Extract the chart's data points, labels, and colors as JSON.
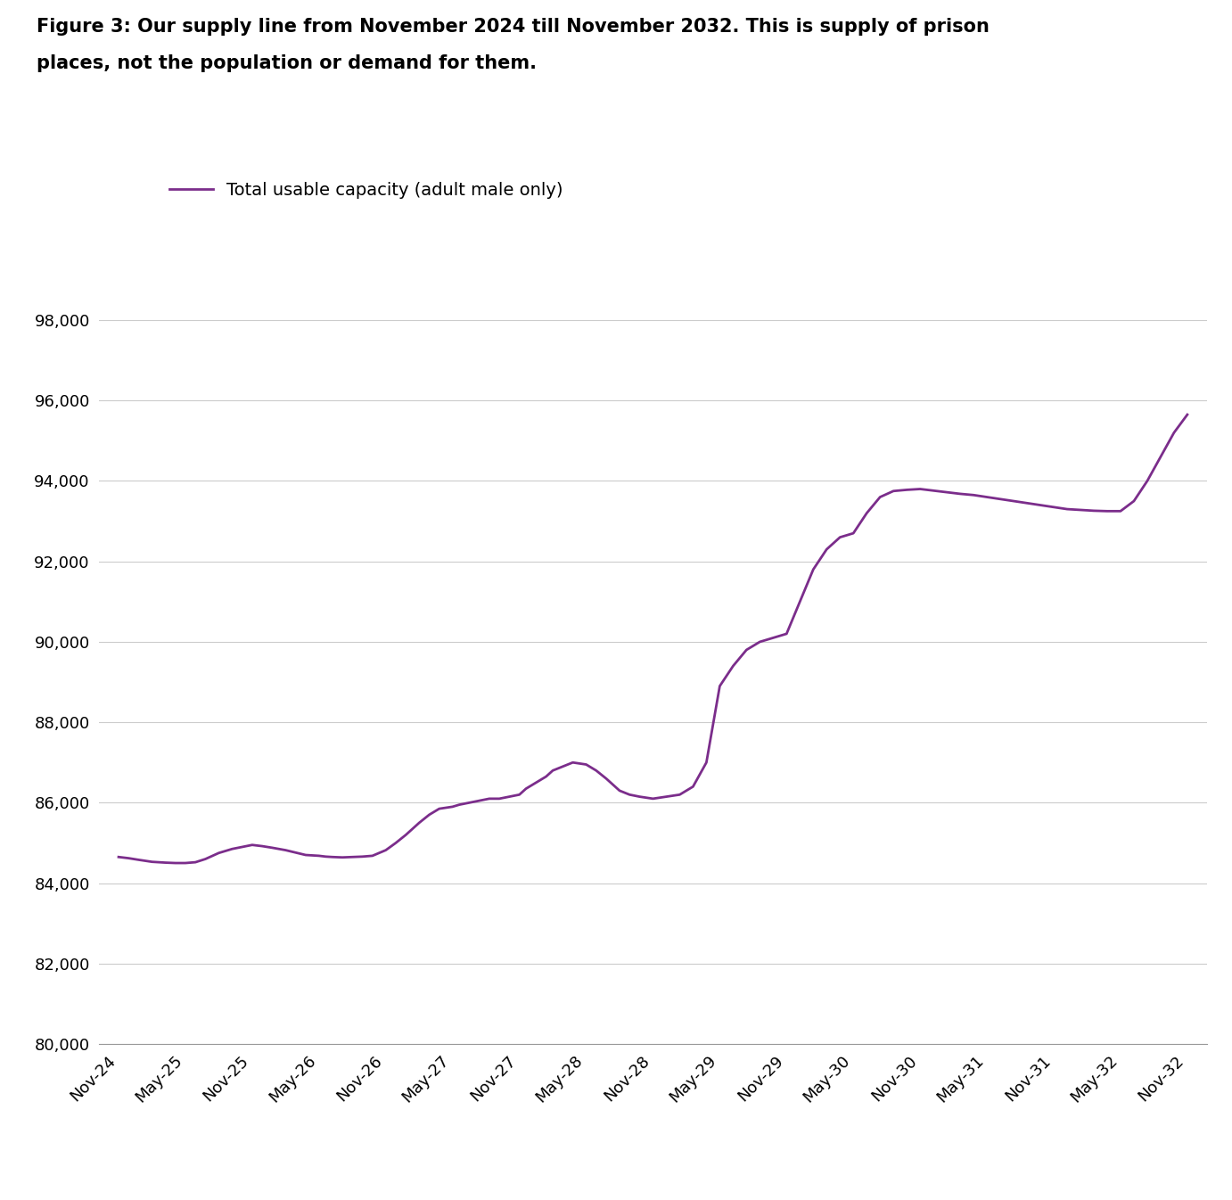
{
  "title_line1": "Figure 3: Our supply line from November 2024 till November 2032. This is supply of prison",
  "title_line2": "places, not the population or demand for them.",
  "legend_label": "Total usable capacity (adult male only)",
  "line_color": "#7B2D8B",
  "background_color": "#ffffff",
  "ylim": [
    80000,
    98500
  ],
  "yticks": [
    80000,
    82000,
    84000,
    86000,
    88000,
    90000,
    92000,
    94000,
    96000,
    98000
  ],
  "x_labels": [
    "Nov-24",
    "May-25",
    "Nov-25",
    "May-26",
    "Nov-26",
    "May-27",
    "Nov-27",
    "May-28",
    "Nov-28",
    "May-29",
    "Nov-29",
    "May-30",
    "Nov-30",
    "May-31",
    "Nov-31",
    "May-32",
    "Nov-32"
  ],
  "title_fontsize": 15,
  "legend_fontsize": 14,
  "tick_fontsize": 13,
  "line_width": 2.0,
  "grid_color": "#cccccc",
  "detailed_x": [
    0.0,
    0.15,
    0.3,
    0.5,
    0.7,
    0.85,
    1.0,
    1.15,
    1.3,
    1.5,
    1.7,
    1.85,
    2.0,
    2.15,
    2.3,
    2.5,
    2.65,
    2.8,
    3.0,
    3.1,
    3.2,
    3.35,
    3.5,
    3.65,
    3.8,
    4.0,
    4.15,
    4.3,
    4.5,
    4.65,
    4.8,
    5.0,
    5.1,
    5.25,
    5.4,
    5.55,
    5.7,
    5.85,
    6.0,
    6.1,
    6.25,
    6.4,
    6.5,
    6.65,
    6.8,
    7.0,
    7.05,
    7.15,
    7.3,
    7.5,
    7.65,
    7.8,
    8.0,
    8.2,
    8.4,
    8.6,
    8.8,
    9.0,
    9.2,
    9.4,
    9.6,
    9.8,
    10.0,
    10.2,
    10.4,
    10.6,
    10.8,
    11.0,
    11.2,
    11.4,
    11.6,
    11.8,
    12.0,
    12.2,
    12.4,
    12.6,
    12.8,
    13.0,
    13.2,
    13.4,
    13.6,
    13.8,
    14.0,
    14.2,
    14.4,
    14.6,
    14.8,
    15.0,
    15.2,
    15.4,
    15.6,
    15.8,
    16.0
  ],
  "detailed_y": [
    84650,
    84620,
    84580,
    84530,
    84510,
    84500,
    84500,
    84520,
    84600,
    84750,
    84850,
    84900,
    84950,
    84920,
    84880,
    84820,
    84760,
    84700,
    84680,
    84660,
    84650,
    84640,
    84650,
    84660,
    84680,
    84820,
    85000,
    85200,
    85500,
    85700,
    85850,
    85900,
    85950,
    86000,
    86050,
    86100,
    86100,
    86150,
    86200,
    86350,
    86500,
    86650,
    86800,
    86900,
    87000,
    86950,
    86900,
    86800,
    86600,
    86300,
    86200,
    86150,
    86100,
    86150,
    86200,
    86400,
    87000,
    88900,
    89400,
    89800,
    90000,
    90100,
    90200,
    91000,
    91800,
    92300,
    92600,
    92700,
    93200,
    93600,
    93750,
    93780,
    93800,
    93760,
    93720,
    93680,
    93650,
    93600,
    93550,
    93500,
    93450,
    93400,
    93350,
    93300,
    93280,
    93260,
    93250,
    93250,
    93500,
    94000,
    94600,
    95200,
    95650
  ]
}
